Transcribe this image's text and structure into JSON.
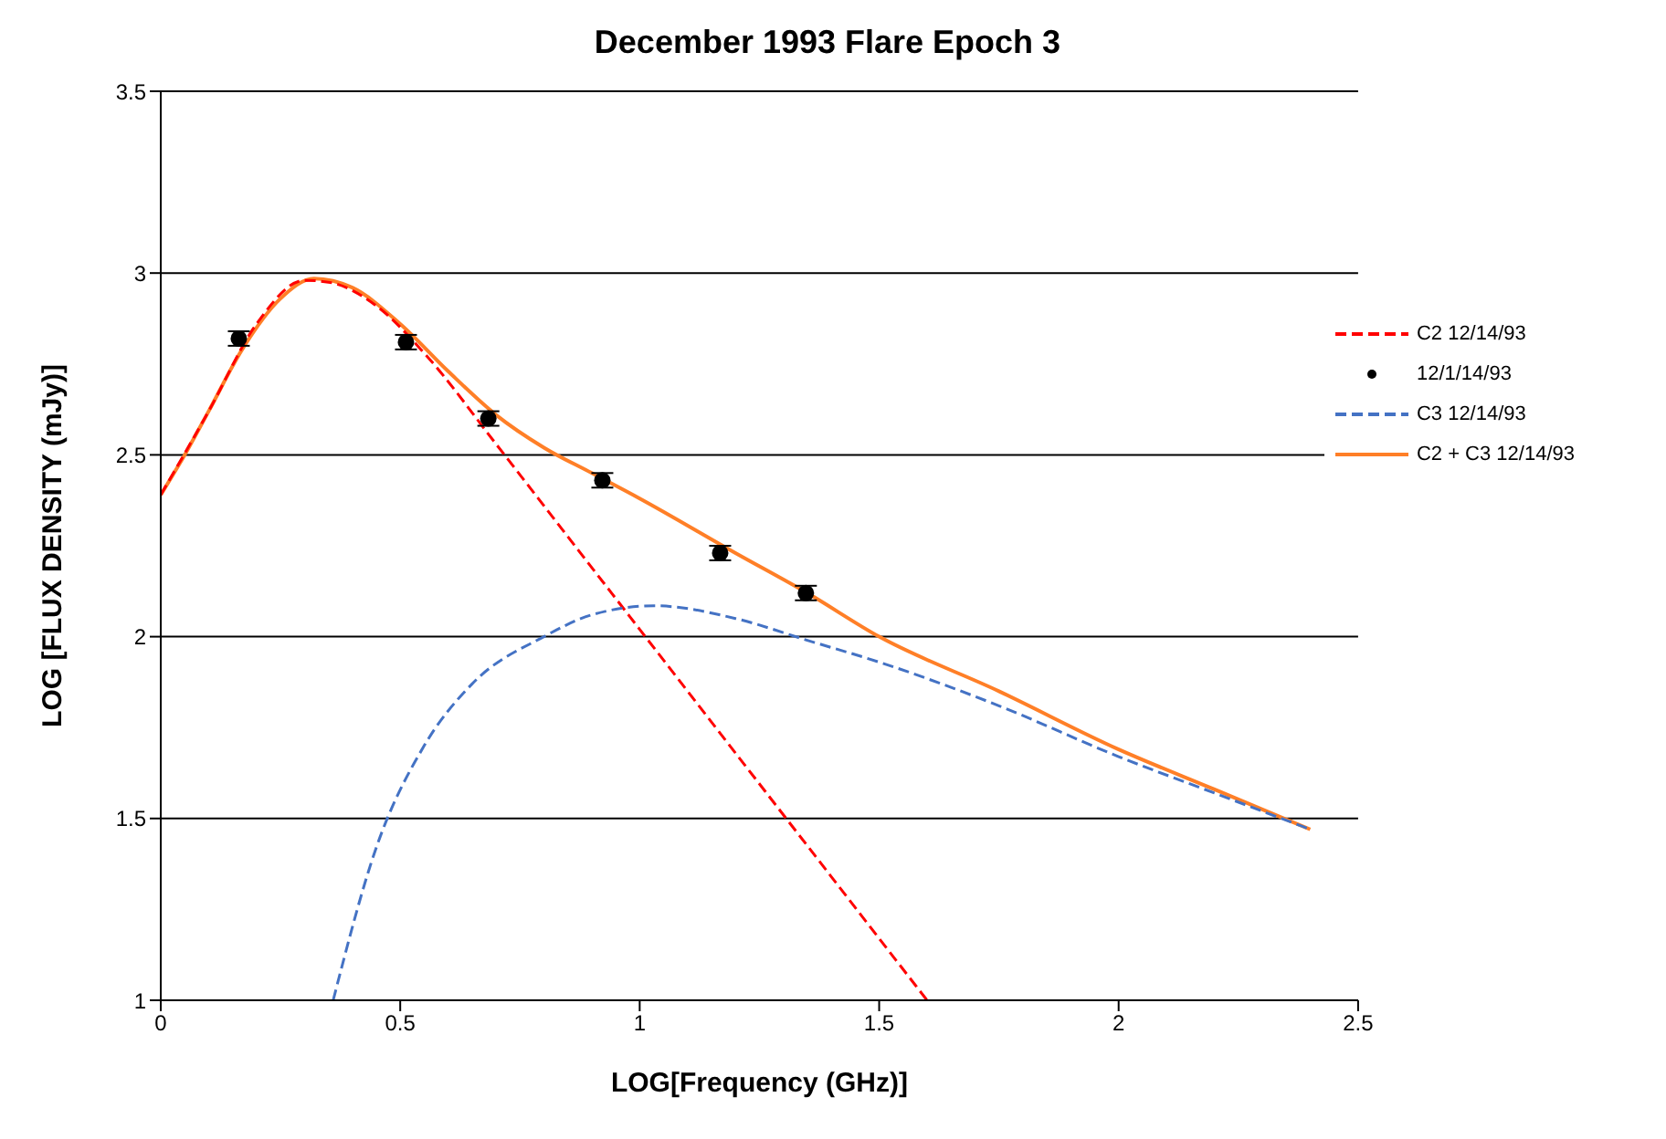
{
  "chart_data": {
    "type": "line",
    "title": "December 1993 Flare Epoch 3",
    "xlabel": "LOG[Frequency (GHz)]",
    "ylabel": "LOG [FLUX DENSITY (mJy)]",
    "xlim": [
      0,
      2.5
    ],
    "xticks": [
      0,
      0.5,
      1,
      1.5,
      2,
      2.5
    ],
    "ylim": [
      1,
      3.5
    ],
    "yticks": [
      1,
      1.5,
      2,
      2.5,
      3,
      3.5
    ],
    "grid": "y",
    "legend": "top right",
    "series": [
      {
        "name": "C2 12/14/93",
        "color": "#ff0000",
        "line_style": "dashed",
        "marker": "none",
        "x": [
          0,
          0.1,
          0.2,
          0.3,
          0.35,
          0.45,
          0.55,
          0.7,
          0.8,
          1.0,
          1.2,
          1.4,
          1.6
        ],
        "values": [
          2.39,
          2.62,
          2.86,
          2.98,
          2.975,
          2.91,
          2.78,
          2.53,
          2.36,
          2.02,
          1.68,
          1.34,
          1.0
        ]
      },
      {
        "name": "12/1/14/93",
        "type": "scatter",
        "color": "#000000",
        "marker": "circle",
        "x": [
          0.163,
          0.512,
          0.684,
          0.922,
          1.168,
          1.347
        ],
        "values": [
          2.82,
          2.81,
          2.6,
          2.43,
          2.23,
          2.12
        ],
        "errors": [
          0.02,
          0.02,
          0.02,
          0.02,
          0.02,
          0.02
        ]
      },
      {
        "name": "C3 12/14/93",
        "color": "#4472c4",
        "line_style": "dashed",
        "marker": "none",
        "x": [
          0.36,
          0.45,
          0.55,
          0.65,
          0.8,
          0.9,
          1.03,
          1.2,
          1.35,
          1.5,
          1.75,
          2.0,
          2.2,
          2.4
        ],
        "values": [
          1.0,
          1.42,
          1.7,
          1.87,
          2.0,
          2.06,
          2.085,
          2.05,
          1.99,
          1.93,
          1.81,
          1.67,
          1.57,
          1.47
        ]
      },
      {
        "name": "C2 + C3 12/14/93",
        "color": "#ff7f27",
        "line_style": "solid",
        "marker": "none",
        "x": [
          0,
          0.05,
          0.1,
          0.17,
          0.25,
          0.32,
          0.4,
          0.5,
          0.6,
          0.7,
          0.8,
          0.9,
          1.0,
          1.2,
          1.35,
          1.5,
          1.75,
          2.0,
          2.2,
          2.4
        ],
        "values": [
          2.39,
          2.5,
          2.62,
          2.79,
          2.93,
          2.985,
          2.96,
          2.86,
          2.73,
          2.61,
          2.52,
          2.45,
          2.38,
          2.23,
          2.12,
          2.0,
          1.85,
          1.69,
          1.58,
          1.47
        ]
      }
    ]
  }
}
